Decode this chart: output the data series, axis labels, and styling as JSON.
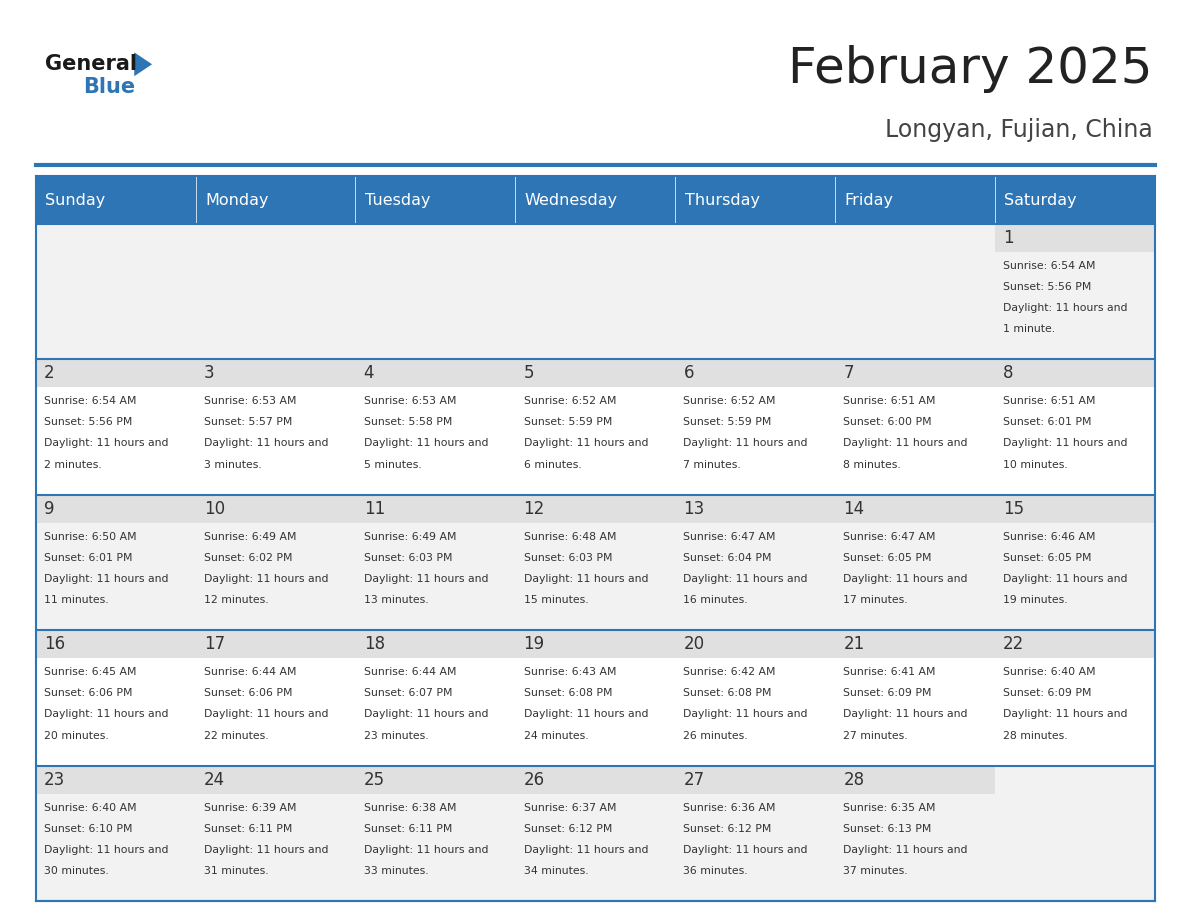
{
  "title": "February 2025",
  "subtitle": "Longyan, Fujian, China",
  "header_bg": "#2E75B6",
  "header_text_color": "#FFFFFF",
  "cell_bg_even": "#F2F2F2",
  "cell_bg_odd": "#FFFFFF",
  "day_number_color": "#333333",
  "info_text_color": "#333333",
  "border_color": "#2E75B6",
  "days_of_week": [
    "Sunday",
    "Monday",
    "Tuesday",
    "Wednesday",
    "Thursday",
    "Friday",
    "Saturday"
  ],
  "title_color": "#222222",
  "subtitle_color": "#444444",
  "calendar": [
    [
      null,
      null,
      null,
      null,
      null,
      null,
      1
    ],
    [
      2,
      3,
      4,
      5,
      6,
      7,
      8
    ],
    [
      9,
      10,
      11,
      12,
      13,
      14,
      15
    ],
    [
      16,
      17,
      18,
      19,
      20,
      21,
      22
    ],
    [
      23,
      24,
      25,
      26,
      27,
      28,
      null
    ]
  ],
  "cell_data": {
    "1": {
      "sunrise": "6:54 AM",
      "sunset": "5:56 PM",
      "daylight": "11 hours and 1 minute."
    },
    "2": {
      "sunrise": "6:54 AM",
      "sunset": "5:56 PM",
      "daylight": "11 hours and 2 minutes."
    },
    "3": {
      "sunrise": "6:53 AM",
      "sunset": "5:57 PM",
      "daylight": "11 hours and 3 minutes."
    },
    "4": {
      "sunrise": "6:53 AM",
      "sunset": "5:58 PM",
      "daylight": "11 hours and 5 minutes."
    },
    "5": {
      "sunrise": "6:52 AM",
      "sunset": "5:59 PM",
      "daylight": "11 hours and 6 minutes."
    },
    "6": {
      "sunrise": "6:52 AM",
      "sunset": "5:59 PM",
      "daylight": "11 hours and 7 minutes."
    },
    "7": {
      "sunrise": "6:51 AM",
      "sunset": "6:00 PM",
      "daylight": "11 hours and 8 minutes."
    },
    "8": {
      "sunrise": "6:51 AM",
      "sunset": "6:01 PM",
      "daylight": "11 hours and 10 minutes."
    },
    "9": {
      "sunrise": "6:50 AM",
      "sunset": "6:01 PM",
      "daylight": "11 hours and 11 minutes."
    },
    "10": {
      "sunrise": "6:49 AM",
      "sunset": "6:02 PM",
      "daylight": "11 hours and 12 minutes."
    },
    "11": {
      "sunrise": "6:49 AM",
      "sunset": "6:03 PM",
      "daylight": "11 hours and 13 minutes."
    },
    "12": {
      "sunrise": "6:48 AM",
      "sunset": "6:03 PM",
      "daylight": "11 hours and 15 minutes."
    },
    "13": {
      "sunrise": "6:47 AM",
      "sunset": "6:04 PM",
      "daylight": "11 hours and 16 minutes."
    },
    "14": {
      "sunrise": "6:47 AM",
      "sunset": "6:05 PM",
      "daylight": "11 hours and 17 minutes."
    },
    "15": {
      "sunrise": "6:46 AM",
      "sunset": "6:05 PM",
      "daylight": "11 hours and 19 minutes."
    },
    "16": {
      "sunrise": "6:45 AM",
      "sunset": "6:06 PM",
      "daylight": "11 hours and 20 minutes."
    },
    "17": {
      "sunrise": "6:44 AM",
      "sunset": "6:06 PM",
      "daylight": "11 hours and 22 minutes."
    },
    "18": {
      "sunrise": "6:44 AM",
      "sunset": "6:07 PM",
      "daylight": "11 hours and 23 minutes."
    },
    "19": {
      "sunrise": "6:43 AM",
      "sunset": "6:08 PM",
      "daylight": "11 hours and 24 minutes."
    },
    "20": {
      "sunrise": "6:42 AM",
      "sunset": "6:08 PM",
      "daylight": "11 hours and 26 minutes."
    },
    "21": {
      "sunrise": "6:41 AM",
      "sunset": "6:09 PM",
      "daylight": "11 hours and 27 minutes."
    },
    "22": {
      "sunrise": "6:40 AM",
      "sunset": "6:09 PM",
      "daylight": "11 hours and 28 minutes."
    },
    "23": {
      "sunrise": "6:40 AM",
      "sunset": "6:10 PM",
      "daylight": "11 hours and 30 minutes."
    },
    "24": {
      "sunrise": "6:39 AM",
      "sunset": "6:11 PM",
      "daylight": "11 hours and 31 minutes."
    },
    "25": {
      "sunrise": "6:38 AM",
      "sunset": "6:11 PM",
      "daylight": "11 hours and 33 minutes."
    },
    "26": {
      "sunrise": "6:37 AM",
      "sunset": "6:12 PM",
      "daylight": "11 hours and 34 minutes."
    },
    "27": {
      "sunrise": "6:36 AM",
      "sunset": "6:12 PM",
      "daylight": "11 hours and 36 minutes."
    },
    "28": {
      "sunrise": "6:35 AM",
      "sunset": "6:13 PM",
      "daylight": "11 hours and 37 minutes."
    }
  }
}
